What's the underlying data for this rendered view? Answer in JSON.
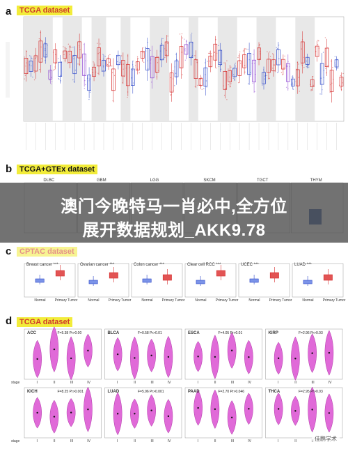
{
  "panel_a": {
    "letter": "a",
    "dataset": "TCGA dataset"
  },
  "panel_b": {
    "letter": "b",
    "dataset": "TCGA+GTEx dataset",
    "groups": [
      "DLBC",
      "GBM",
      "LGG",
      "SKCM",
      "TGCT",
      "THYM"
    ]
  },
  "panel_c": {
    "letter": "c",
    "dataset": "CPTAC dataset",
    "plots": [
      {
        "name": "Breast cancer",
        "stars": "***"
      },
      {
        "name": "Ovarian cancer",
        "stars": "***"
      },
      {
        "name": "Colon cancer",
        "stars": "***"
      },
      {
        "name": "Clear cell RCC",
        "stars": "***"
      },
      {
        "name": "UCEC",
        "stars": "***"
      },
      {
        "name": "LUAD",
        "stars": "***"
      }
    ],
    "xlabels": [
      "Normal",
      "Primary Tumor"
    ]
  },
  "panel_d": {
    "letter": "d",
    "dataset": "TCGA dataset",
    "stage_label": "stage",
    "stages": [
      "I",
      "II",
      "III",
      "IV"
    ],
    "row1": [
      {
        "name": "ACC",
        "stat": "F=5.38  Pr>0.00"
      },
      {
        "name": "BLCA",
        "stat": "F=0.58  Pr>0.01"
      },
      {
        "name": "ESCA",
        "stat": "F=4.05  Pr>0.01"
      },
      {
        "name": "KIRP",
        "stat": "F=2.96  Pr>0.03"
      }
    ],
    "row2": [
      {
        "name": "KICH",
        "stat": "F=8.25  Pr>0.001"
      },
      {
        "name": "LUAD",
        "stat": "F=5.96  Pr>0.001"
      },
      {
        "name": "PAAD",
        "stat": "F=2.70  Pr>0.046"
      },
      {
        "name": "THCA",
        "stat": "F=2.95  Pr>0.03"
      }
    ]
  },
  "overlay": {
    "line1": "澳门今晚特马一肖必中,全方位",
    "line2": "展开数据规划_AKK9.78"
  },
  "watermark": "佳鹏学术"
}
